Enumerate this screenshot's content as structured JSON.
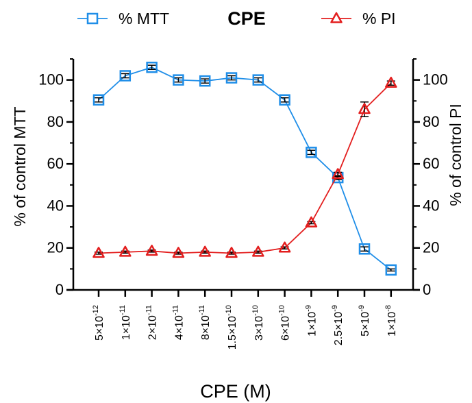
{
  "chart_data": {
    "type": "line",
    "title": "CPE",
    "xlabel": "CPE (M)",
    "ylabel_left": "% of control MTT",
    "ylabel_right": "% of control PI",
    "legend_position": "top",
    "ylim_left": [
      0,
      110
    ],
    "ylim_right": [
      0,
      110
    ],
    "yticks_left": [
      0,
      20,
      40,
      60,
      80,
      100
    ],
    "yticks_right": [
      0,
      20,
      40,
      60,
      80,
      100
    ],
    "categories": [
      {
        "mantissa": "5",
        "exp": "-12"
      },
      {
        "mantissa": "1",
        "exp": "-11"
      },
      {
        "mantissa": "2",
        "exp": "-11"
      },
      {
        "mantissa": "4",
        "exp": "-11"
      },
      {
        "mantissa": "8",
        "exp": "-11"
      },
      {
        "mantissa": "1.5",
        "exp": "-10"
      },
      {
        "mantissa": "3",
        "exp": "-10"
      },
      {
        "mantissa": "6",
        "exp": "-10"
      },
      {
        "mantissa": "1",
        "exp": "-9"
      },
      {
        "mantissa": "2.5",
        "exp": "-9"
      },
      {
        "mantissa": "5",
        "exp": "-9"
      },
      {
        "mantissa": "1",
        "exp": "-8"
      }
    ],
    "series": [
      {
        "name": "% MTT",
        "axis": "left",
        "color": "#1f8ee8",
        "marker": "square",
        "values": [
          90.5,
          102,
          106,
          100,
          99.5,
          101,
          100,
          90.5,
          65.5,
          53.5,
          19.5,
          9.5
        ],
        "errors": [
          1,
          1,
          1,
          1,
          1,
          1,
          1,
          1,
          1,
          1,
          1,
          0.5
        ]
      },
      {
        "name": "% PI",
        "axis": "right",
        "color": "#e31e1e",
        "marker": "triangle",
        "values": [
          17.5,
          18,
          18.5,
          17.5,
          18,
          17.5,
          18,
          20,
          32,
          55,
          86,
          98.5
        ],
        "errors": [
          0.5,
          0.5,
          0.5,
          0.5,
          0.5,
          0.5,
          0.5,
          0.5,
          0.5,
          1,
          3.5,
          1
        ]
      }
    ]
  }
}
